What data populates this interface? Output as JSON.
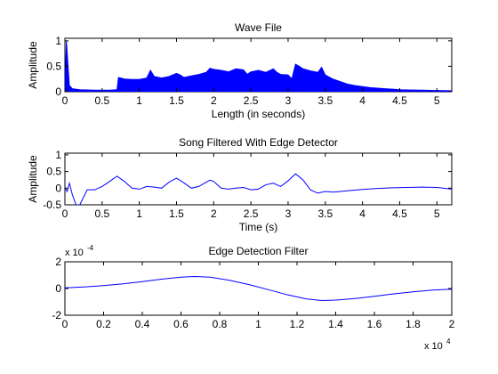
{
  "chart_data": [
    {
      "type": "area",
      "title": "Wave File",
      "xlabel": "Length (in seconds)",
      "ylabel": "Amplitude",
      "xlim": [
        0,
        5.2
      ],
      "ylim": [
        0,
        1.05
      ],
      "xticks": [
        0,
        0.5,
        1,
        1.5,
        2,
        2.5,
        3,
        3.5,
        4,
        4.5,
        5
      ],
      "xtick_labels": [
        "0",
        "0.5",
        "1",
        "1.5",
        "2",
        "2.5",
        "3",
        "3.5",
        "4",
        "4.5",
        "5"
      ],
      "yticks": [
        0,
        0.5,
        1
      ],
      "ytick_labels": [
        "0",
        "0.5",
        "1"
      ],
      "color": "#0000ff",
      "series": [
        {
          "x": [
            0,
            0.02,
            0.04,
            0.06,
            0.1,
            0.2,
            0.4,
            0.6,
            0.7,
            0.72,
            0.75,
            0.8,
            0.9,
            1.0,
            1.1,
            1.15,
            1.2,
            1.3,
            1.4,
            1.5,
            1.55,
            1.6,
            1.7,
            1.8,
            1.9,
            1.95,
            2.0,
            2.1,
            2.2,
            2.3,
            2.4,
            2.45,
            2.5,
            2.6,
            2.7,
            2.8,
            2.85,
            2.9,
            3.0,
            3.05,
            3.1,
            3.15,
            3.2,
            3.3,
            3.4,
            3.45,
            3.5,
            3.6,
            3.7,
            3.8,
            3.9,
            4.0,
            4.1,
            4.2,
            4.3,
            4.4,
            4.5,
            4.6,
            4.8,
            5.0,
            5.2
          ],
          "y": [
            0,
            1.0,
            0.55,
            0.12,
            0.06,
            0.04,
            0.03,
            0.03,
            0.04,
            0.28,
            0.27,
            0.25,
            0.24,
            0.24,
            0.27,
            0.42,
            0.3,
            0.27,
            0.3,
            0.36,
            0.33,
            0.28,
            0.31,
            0.34,
            0.38,
            0.46,
            0.44,
            0.42,
            0.39,
            0.45,
            0.43,
            0.34,
            0.39,
            0.42,
            0.38,
            0.45,
            0.38,
            0.34,
            0.33,
            0.25,
            0.54,
            0.5,
            0.45,
            0.41,
            0.38,
            0.48,
            0.33,
            0.25,
            0.2,
            0.15,
            0.12,
            0.1,
            0.08,
            0.07,
            0.06,
            0.05,
            0.04,
            0.035,
            0.03,
            0.025,
            0.02
          ]
        }
      ]
    },
    {
      "type": "line",
      "title": "Song Filtered With Edge Detector",
      "xlabel": "Time (s)",
      "ylabel": "Amplitude",
      "xlim": [
        0,
        5.2
      ],
      "ylim": [
        -0.5,
        1.05
      ],
      "xticks": [
        0,
        0.5,
        1,
        1.5,
        2,
        2.5,
        3,
        3.5,
        4,
        4.5,
        5
      ],
      "xtick_labels": [
        "0",
        "0.5",
        "1",
        "1.5",
        "2",
        "2.5",
        "3",
        "3.5",
        "4",
        "4.5",
        "5"
      ],
      "yticks": [
        -0.5,
        0,
        0.5,
        1
      ],
      "ytick_labels": [
        "-0.5",
        "0",
        "0.5",
        "1"
      ],
      "color": "#0000ff",
      "series": [
        {
          "x": [
            0,
            0.03,
            0.06,
            0.1,
            0.15,
            0.2,
            0.3,
            0.4,
            0.5,
            0.6,
            0.7,
            0.8,
            0.9,
            1.0,
            1.1,
            1.2,
            1.3,
            1.4,
            1.5,
            1.6,
            1.7,
            1.8,
            1.9,
            1.95,
            2.0,
            2.1,
            2.2,
            2.3,
            2.4,
            2.5,
            2.6,
            2.7,
            2.8,
            2.9,
            3.0,
            3.1,
            3.2,
            3.3,
            3.4,
            3.5,
            3.6,
            3.7,
            3.8,
            4.0,
            4.2,
            4.4,
            4.6,
            4.8,
            5.0,
            5.2
          ],
          "y": [
            0.02,
            -0.1,
            0.15,
            -0.2,
            -0.5,
            -0.5,
            -0.05,
            -0.05,
            0.05,
            0.2,
            0.36,
            0.2,
            0.0,
            -0.03,
            0.05,
            0.03,
            0.0,
            0.18,
            0.3,
            0.16,
            0.0,
            0.05,
            0.18,
            0.24,
            0.2,
            0.0,
            -0.03,
            0.0,
            0.02,
            -0.05,
            -0.03,
            0.1,
            0.15,
            0.05,
            0.22,
            0.43,
            0.25,
            -0.05,
            -0.15,
            -0.1,
            -0.12,
            -0.1,
            -0.08,
            -0.04,
            -0.01,
            0.01,
            0.02,
            0.03,
            0.02,
            -0.03
          ]
        }
      ]
    },
    {
      "type": "line",
      "title": "Edge Detection Filter",
      "xlabel": "",
      "ylabel": "",
      "xlim": [
        0,
        20000
      ],
      "ylim": [
        -0.0002,
        0.0002
      ],
      "xticks": [
        0,
        2000,
        4000,
        6000,
        8000,
        10000,
        12000,
        14000,
        16000,
        18000,
        20000
      ],
      "xtick_labels": [
        "0",
        "0.2",
        "0.4",
        "0.6",
        "0.8",
        "1",
        "1.2",
        "1.4",
        "1.6",
        "1.8",
        "2"
      ],
      "yticks": [
        -0.0002,
        0,
        0.0002
      ],
      "ytick_labels": [
        "-2",
        "0",
        "2"
      ],
      "y_multiplier": "x 10",
      "y_multiplier_exp": "-4",
      "x_multiplier": "x 10",
      "x_multiplier_exp": "4",
      "color": "#0000ff",
      "series": [
        {
          "x": [
            0,
            1000,
            2000,
            3000,
            4000,
            5000,
            6000,
            6700,
            7500,
            8500,
            9500,
            10500,
            11500,
            12500,
            13300,
            14000,
            15000,
            16000,
            17000,
            18000,
            19000,
            20000
          ],
          "y": [
            5e-06,
            1.2e-05,
            2.2e-05,
            3.5e-05,
            5.2e-05,
            7e-05,
            8.5e-05,
            9e-05,
            8.5e-05,
            6.2e-05,
            3e-05,
            -8e-06,
            -4.7e-05,
            -7.8e-05,
            -9e-05,
            -8.7e-05,
            -7.5e-05,
            -5.8e-05,
            -4e-05,
            -2.5e-05,
            -1.2e-05,
            -5e-06
          ]
        }
      ]
    }
  ]
}
